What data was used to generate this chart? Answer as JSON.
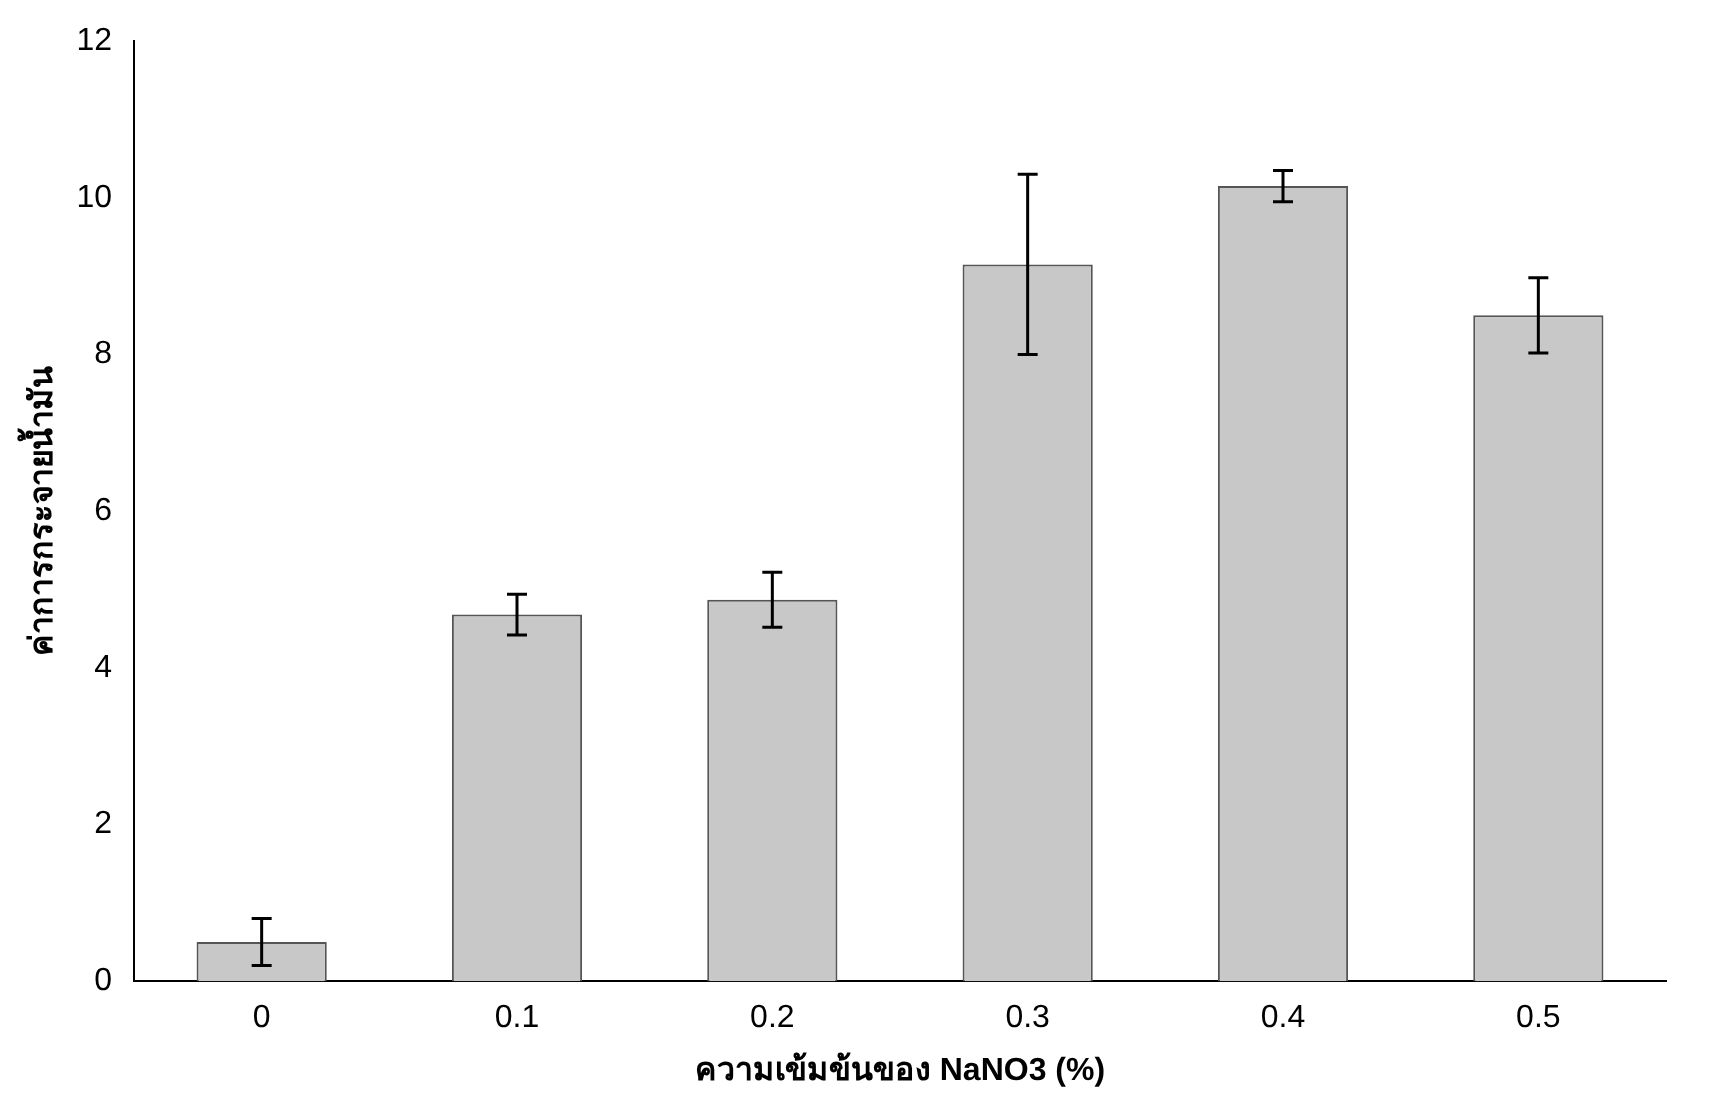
{
  "chart_data": {
    "type": "bar",
    "xlabel": "ความเข้มข้นของ NaNO3 (%)",
    "ylabel": "ค่าการกระจายน้ำมัน",
    "categories": [
      "0",
      "0.1",
      "0.2",
      "0.3",
      "0.4",
      "0.5"
    ],
    "values": [
      0.5,
      4.68,
      4.87,
      9.15,
      10.15,
      8.5
    ],
    "errors": [
      0.3,
      0.26,
      0.35,
      1.15,
      0.2,
      0.48
    ],
    "color": "#c8c8c8",
    "ylim": [
      0,
      12
    ],
    "yticks": [
      0,
      2,
      4,
      6,
      8,
      10,
      12
    ],
    "grid": false,
    "legend": false
  }
}
